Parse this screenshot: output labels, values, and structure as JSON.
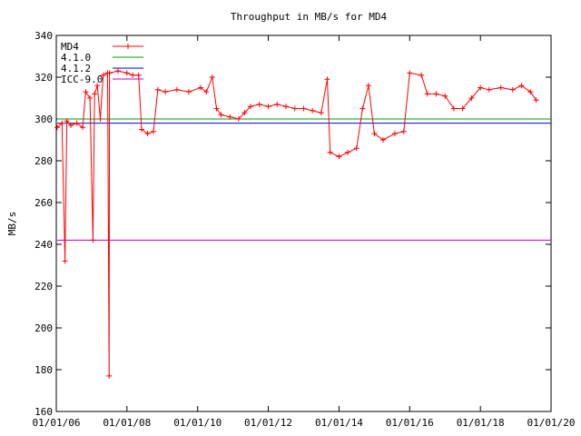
{
  "chart_data": {
    "type": "line",
    "title": "Throughput in MB/s for MD4",
    "xlabel": "",
    "ylabel": "MB/s",
    "x_ticks": [
      "01/01/06",
      "01/01/08",
      "01/01/10",
      "01/01/12",
      "01/01/14",
      "01/01/16",
      "01/01/18",
      "01/01/20"
    ],
    "xlim": [
      "2006-01-01",
      "2020-01-01"
    ],
    "ylim": [
      160,
      340
    ],
    "y_ticks": [
      160,
      180,
      200,
      220,
      240,
      260,
      280,
      300,
      320,
      340
    ],
    "grid": false,
    "legend_position": "top-left",
    "series": [
      {
        "name": "MD4",
        "color": "#ff0000",
        "marker": "plus",
        "points": [
          [
            "2006-01-10",
            296
          ],
          [
            "2006-03-01",
            298
          ],
          [
            "2006-04-01",
            232
          ],
          [
            "2006-04-20",
            299
          ],
          [
            "2006-06-01",
            297
          ],
          [
            "2006-08-01",
            298
          ],
          [
            "2006-10-01",
            296
          ],
          [
            "2006-11-01",
            313
          ],
          [
            "2006-12-15",
            310
          ],
          [
            "2007-01-15",
            242
          ],
          [
            "2007-02-01",
            312
          ],
          [
            "2007-03-01",
            316
          ],
          [
            "2007-04-01",
            300
          ],
          [
            "2007-05-01",
            321
          ],
          [
            "2007-06-15",
            322
          ],
          [
            "2007-07-01",
            177
          ],
          [
            "2007-07-05",
            322
          ],
          [
            "2007-10-01",
            323
          ],
          [
            "2008-01-01",
            322
          ],
          [
            "2008-03-01",
            321
          ],
          [
            "2008-05-01",
            321
          ],
          [
            "2008-06-01",
            295
          ],
          [
            "2008-08-01",
            293
          ],
          [
            "2008-10-01",
            294
          ],
          [
            "2008-11-15",
            314
          ],
          [
            "2009-02-01",
            313
          ],
          [
            "2009-06-01",
            314
          ],
          [
            "2009-10-01",
            313
          ],
          [
            "2010-02-01",
            315
          ],
          [
            "2010-04-01",
            313
          ],
          [
            "2010-06-01",
            320
          ],
          [
            "2010-07-15",
            305
          ],
          [
            "2010-09-01",
            302
          ],
          [
            "2010-12-01",
            301
          ],
          [
            "2011-03-01",
            300
          ],
          [
            "2011-05-01",
            303
          ],
          [
            "2011-07-01",
            306
          ],
          [
            "2011-10-01",
            307
          ],
          [
            "2012-01-01",
            306
          ],
          [
            "2012-04-01",
            307
          ],
          [
            "2012-07-01",
            306
          ],
          [
            "2012-10-01",
            305
          ],
          [
            "2013-01-01",
            305
          ],
          [
            "2013-04-01",
            304
          ],
          [
            "2013-07-01",
            303
          ],
          [
            "2013-09-01",
            319
          ],
          [
            "2013-10-01",
            284
          ],
          [
            "2014-01-01",
            282
          ],
          [
            "2014-04-01",
            284
          ],
          [
            "2014-07-01",
            286
          ],
          [
            "2014-09-01",
            305
          ],
          [
            "2014-11-01",
            316
          ],
          [
            "2015-01-01",
            293
          ],
          [
            "2015-04-01",
            290
          ],
          [
            "2015-08-01",
            293
          ],
          [
            "2015-11-01",
            294
          ],
          [
            "2016-01-01",
            322
          ],
          [
            "2016-05-01",
            321
          ],
          [
            "2016-07-01",
            312
          ],
          [
            "2016-10-01",
            312
          ],
          [
            "2017-01-01",
            311
          ],
          [
            "2017-04-01",
            305
          ],
          [
            "2017-07-01",
            305
          ],
          [
            "2017-10-01",
            310
          ],
          [
            "2018-01-01",
            315
          ],
          [
            "2018-04-01",
            314
          ],
          [
            "2018-08-01",
            315
          ],
          [
            "2018-12-01",
            314
          ],
          [
            "2019-03-01",
            316
          ],
          [
            "2019-06-01",
            313
          ],
          [
            "2019-08-01",
            309
          ]
        ]
      },
      {
        "name": "4.1.0",
        "color": "#00a000",
        "value": 300
      },
      {
        "name": "4.1.2",
        "color": "#0000ff",
        "value": 298
      },
      {
        "name": "ICC-9.0",
        "color": "#c000c0",
        "value": 242
      }
    ]
  }
}
